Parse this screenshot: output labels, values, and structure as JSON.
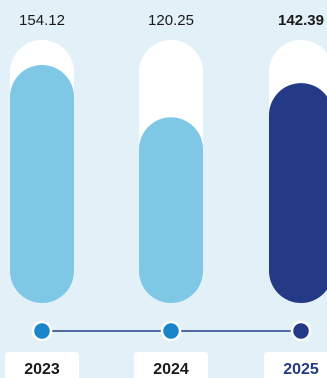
{
  "chart_data": {
    "type": "bar",
    "categories": [
      "2023",
      "2024",
      "2025"
    ],
    "values": [
      154.12,
      120.25,
      142.39
    ],
    "value_labels": [
      "154.12",
      "120.25",
      "142.39"
    ],
    "highlight_index": 2,
    "ylim": [
      0,
      160
    ],
    "title": "",
    "xlabel": "",
    "ylabel": "",
    "colors": {
      "bar": "#7ec8e6",
      "bar_highlight": "#253a87",
      "track": "#ffffff",
      "dot": "#1a86c9",
      "dot_highlight": "#253a87",
      "year_text": "#1a1a1a",
      "year_text_highlight": "#253a87",
      "timeline": "#253a87"
    }
  }
}
